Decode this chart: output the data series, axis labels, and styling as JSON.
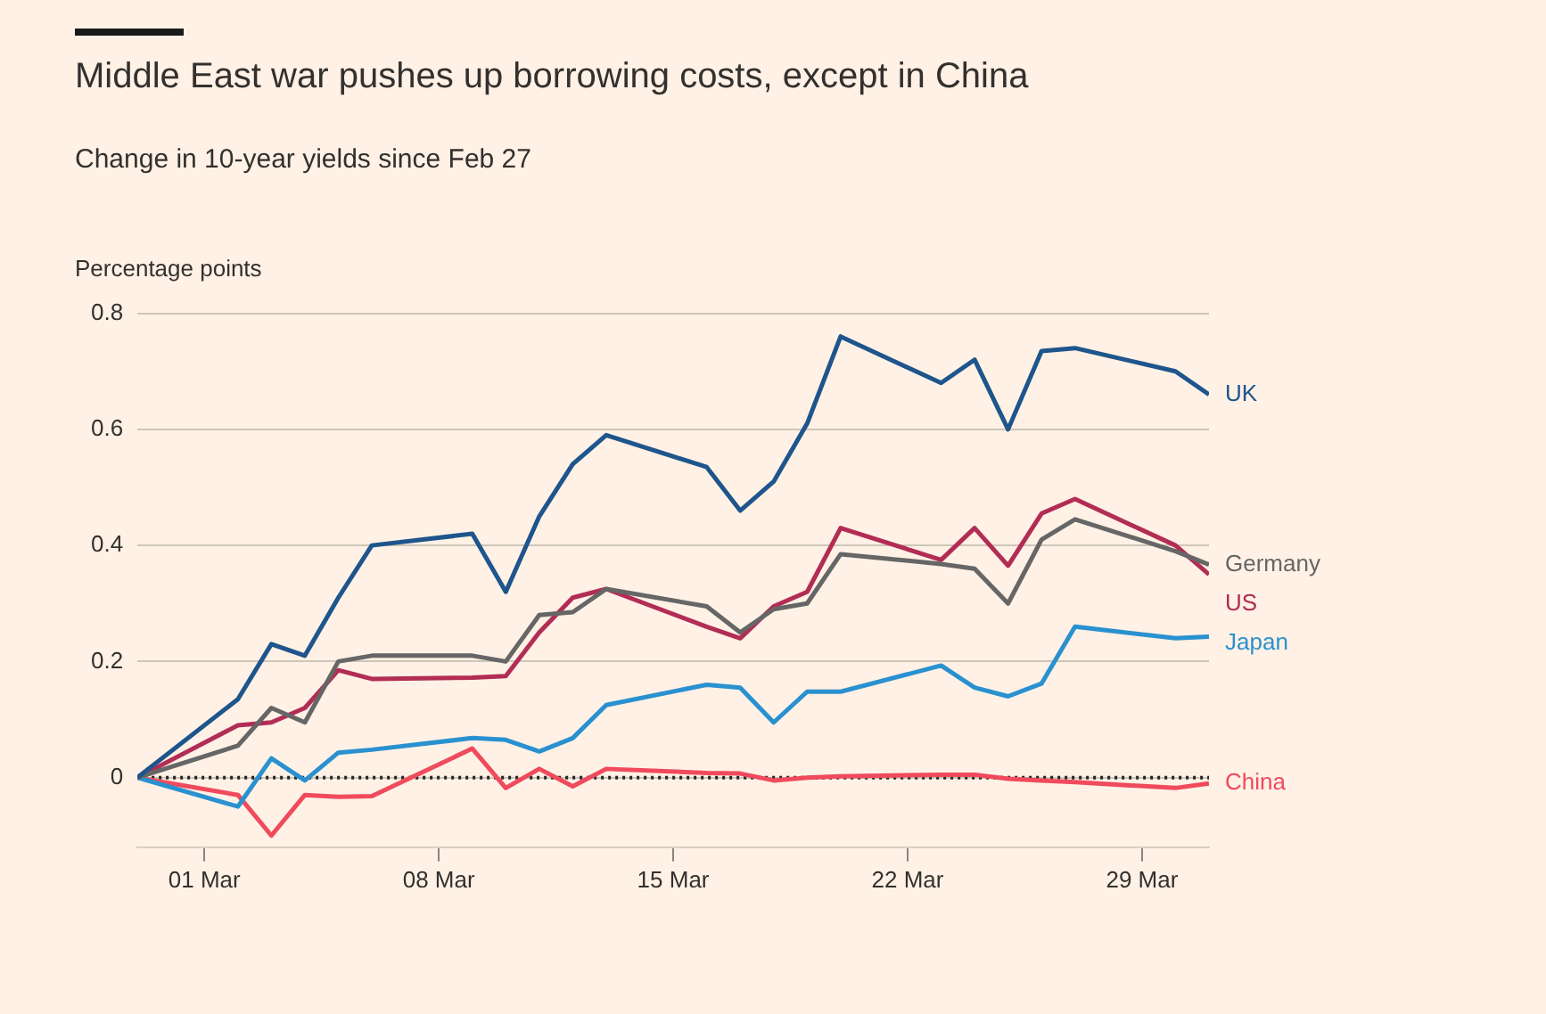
{
  "chart_data": {
    "type": "line",
    "title": "Middle East war pushes up borrowing costs, except in China",
    "subtitle": "Change in 10-year yields since Feb 27",
    "ylabel": "Percentage points",
    "x": [
      "--02-27",
      "--03-02",
      "--03-03",
      "--03-04",
      "--03-05",
      "--03-06",
      "--03-09",
      "--03-10",
      "--03-11",
      "--03-12",
      "--03-13",
      "--03-16",
      "--03-17",
      "--03-18",
      "--03-19",
      "--03-20",
      "--03-23",
      "--03-24",
      "--03-25",
      "--03-26",
      "--03-27",
      "--03-30",
      "--03-31"
    ],
    "series": [
      {
        "name": "UK",
        "color": "#1e558c",
        "values": [
          0,
          0.135,
          0.23,
          0.21,
          0.31,
          0.4,
          0.42,
          0.32,
          0.45,
          0.54,
          0.59,
          0.535,
          0.46,
          0.51,
          0.61,
          0.76,
          0.68,
          0.72,
          0.6,
          0.735,
          0.74,
          0.7,
          0.66
        ]
      },
      {
        "name": "Germany",
        "color": "#666666",
        "values": [
          0,
          0.055,
          0.12,
          0.095,
          0.2,
          0.21,
          0.21,
          0.2,
          0.28,
          0.285,
          0.325,
          0.295,
          0.25,
          0.29,
          0.3,
          0.385,
          0.368,
          0.36,
          0.3,
          0.41,
          0.445,
          0.39,
          0.367
        ]
      },
      {
        "name": "US",
        "color": "#b22d55",
        "values": [
          0,
          0.09,
          0.095,
          0.12,
          0.185,
          0.17,
          0.172,
          0.175,
          0.25,
          0.31,
          0.325,
          0.26,
          0.24,
          0.295,
          0.32,
          0.43,
          0.375,
          0.43,
          0.365,
          0.455,
          0.48,
          0.4,
          0.35
        ]
      },
      {
        "name": "Japan",
        "color": "#2a91d0",
        "values": [
          0,
          -0.05,
          0.033,
          -0.005,
          0.043,
          0.048,
          0.068,
          0.065,
          0.045,
          0.068,
          0.125,
          0.16,
          0.155,
          0.095,
          0.148,
          0.148,
          0.193,
          0.155,
          0.14,
          0.162,
          0.26,
          0.24,
          0.243
        ]
      },
      {
        "name": "China",
        "color": "#f04a5d",
        "values": [
          0,
          -0.03,
          -0.1,
          -0.03,
          -0.033,
          -0.032,
          0.05,
          -0.018,
          0.015,
          -0.015,
          0.015,
          0.008,
          0.007,
          -0.005,
          0,
          0.002,
          0.005,
          0.005,
          -0.002,
          -0.005,
          -0.008,
          -0.018,
          -0.01
        ]
      }
    ],
    "xlim": [
      "--02-27",
      "--03-31"
    ],
    "xticks": [
      {
        "value": "--03-01",
        "label": "01 Mar"
      },
      {
        "value": "--03-08",
        "label": "08 Mar"
      },
      {
        "value": "--03-15",
        "label": "15 Mar"
      },
      {
        "value": "--03-22",
        "label": "22 Mar"
      },
      {
        "value": "--03-29",
        "label": "29 Mar"
      }
    ],
    "ylim": [
      -0.12,
      0.8
    ],
    "yticks": [
      {
        "value": 0,
        "label": "0"
      },
      0.2,
      0.4,
      0.6,
      0.8
    ],
    "ref_lines": [
      {
        "axis": "y",
        "value": 0,
        "color": "#262626",
        "line_style": "dotted"
      }
    ],
    "grid": "y",
    "legend": false,
    "marker": "none",
    "line_style": "solid"
  }
}
